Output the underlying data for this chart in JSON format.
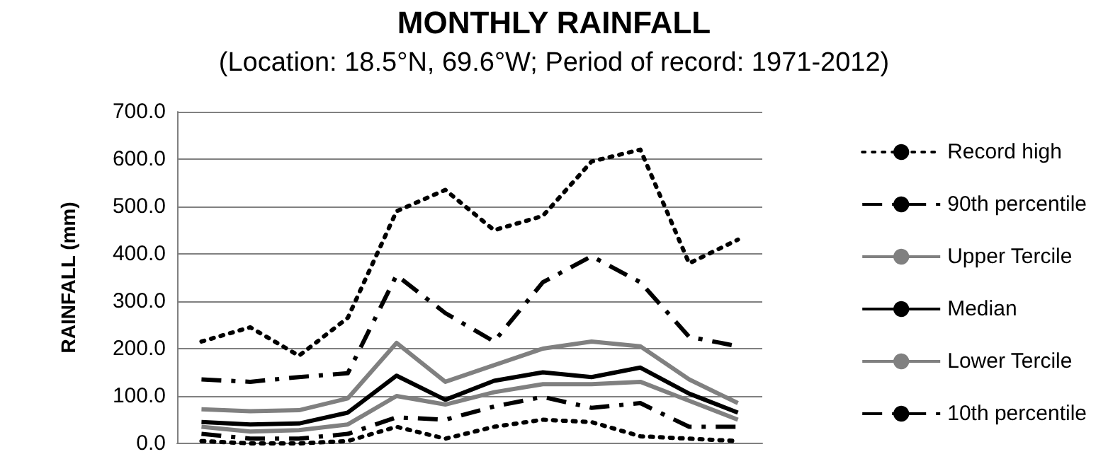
{
  "chart_data": {
    "type": "line",
    "title": "MONTHLY RAINFALL",
    "subtitle": "(Location: 18.5°N, 69.6°W; Period of record: 1971-2012)",
    "ylabel": "RAINFALL (mm)",
    "categories": [
      null,
      null,
      null,
      null,
      null,
      null,
      null,
      null,
      null,
      null,
      null,
      null
    ],
    "series": [
      {
        "name": "Record high",
        "color": "#000000",
        "line_style": "dotted",
        "values": [
          215,
          245,
          185,
          265,
          490,
          535,
          450,
          480,
          595,
          620,
          380,
          430
        ]
      },
      {
        "name": "90th percentile",
        "color": "#000000",
        "line_style": "dashed",
        "values": [
          135,
          130,
          140,
          148,
          355,
          275,
          215,
          340,
          395,
          340,
          225,
          205
        ]
      },
      {
        "name": "Upper Tercile",
        "color": "#808080",
        "line_style": "solid",
        "values": [
          72,
          68,
          70,
          95,
          212,
          130,
          165,
          200,
          215,
          205,
          135,
          85
        ]
      },
      {
        "name": "Median",
        "color": "#000000",
        "line_style": "solid",
        "values": [
          45,
          40,
          42,
          65,
          143,
          92,
          132,
          150,
          140,
          160,
          105,
          65
        ]
      },
      {
        "name": "Lower Tercile",
        "color": "#808080",
        "line_style": "solid",
        "values": [
          35,
          25,
          28,
          40,
          100,
          82,
          108,
          125,
          125,
          130,
          90,
          50
        ]
      },
      {
        "name": "10th percentile",
        "color": "#000000",
        "line_style": "dashed",
        "values": [
          20,
          10,
          10,
          20,
          55,
          50,
          78,
          98,
          75,
          85,
          35,
          35
        ]
      },
      {
        "color": "#000000",
        "line_style": "dotted",
        "values": [
          5,
          0,
          0,
          5,
          35,
          10,
          35,
          50,
          45,
          15,
          10,
          5
        ]
      }
    ],
    "ylim": [
      0,
      700
    ],
    "yticks": [
      {
        "value": 0,
        "label": "0.0"
      },
      {
        "value": 100,
        "label": "100.0"
      },
      {
        "value": 200,
        "label": "200.0"
      },
      {
        "value": 300,
        "label": "300.0"
      },
      {
        "value": 400,
        "label": "400.0"
      },
      {
        "value": 500,
        "label": "500.0"
      },
      {
        "value": 600,
        "label": "600.0"
      },
      {
        "value": 700,
        "label": "700.0"
      }
    ],
    "grid": "y",
    "legend": "right",
    "marker": "none",
    "tick_labels": "y"
  }
}
